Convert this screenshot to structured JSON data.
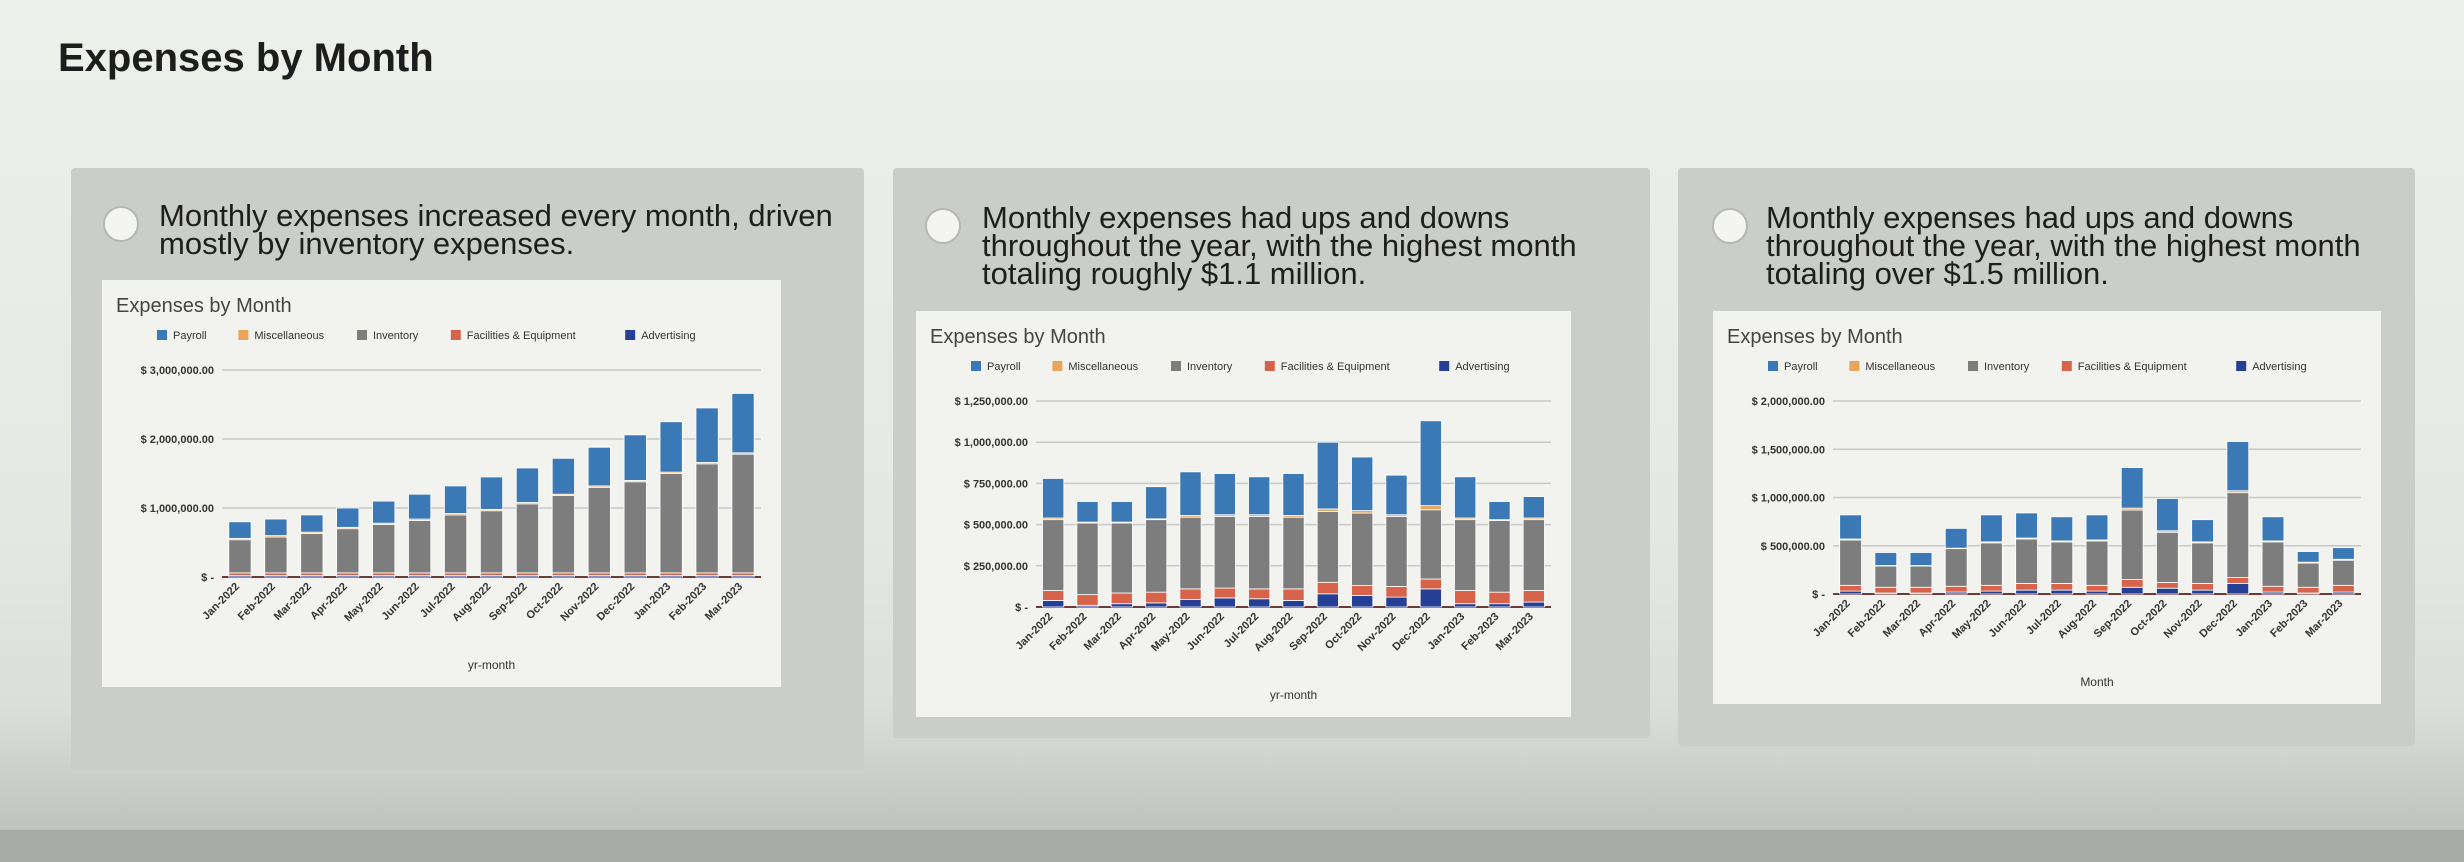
{
  "page": {
    "title": "Expenses by Month"
  },
  "options": [
    {
      "text": "Monthly expenses increased every month, driven mostly by inventory expenses.",
      "selected": false
    },
    {
      "text": "Monthly expenses had ups and downs throughout the year, with the highest month totaling roughly $1.1 million.",
      "selected": false
    },
    {
      "text": "Monthly expenses had ups and downs throughout the year, with the highest month totaling over $1.5 million.",
      "selected": false
    }
  ],
  "colors": {
    "Payroll": "#3b79b6",
    "Miscellaneous": "#e9a55c",
    "Inventory": "#7d7d7d",
    "Facilities & Equipment": "#d8634b",
    "Advertising": "#263f96"
  },
  "chart_data": [
    {
      "type": "bar",
      "stacked": true,
      "title": "Expenses by Month",
      "xlabel": "yr-month",
      "ylabel": "",
      "legend": "top",
      "grid": true,
      "ylim": [
        0,
        3000000
      ],
      "yticks": [
        0,
        1000000,
        2000000,
        3000000
      ],
      "ytick_labels": [
        "$ -",
        "$ 1,000,000.00",
        "$ 2,000,000.00",
        "$ 3,000,000.00"
      ],
      "categories": [
        "Jan-2022",
        "Feb-2022",
        "Mar-2022",
        "Apr-2022",
        "May-2022",
        "Jun-2022",
        "Jul-2022",
        "Aug-2022",
        "Sep-2022",
        "Oct-2022",
        "Nov-2022",
        "Dec-2022",
        "Jan-2023",
        "Feb-2023",
        "Mar-2023"
      ],
      "series": [
        {
          "name": "Advertising",
          "values": [
            20000,
            20000,
            20000,
            20000,
            20000,
            20000,
            20000,
            20000,
            20000,
            20000,
            20000,
            20000,
            20000,
            20000,
            20000
          ]
        },
        {
          "name": "Facilities & Equipment",
          "values": [
            40000,
            40000,
            40000,
            40000,
            40000,
            40000,
            40000,
            40000,
            40000,
            40000,
            40000,
            40000,
            40000,
            40000,
            40000
          ]
        },
        {
          "name": "Inventory",
          "values": [
            480000,
            520000,
            570000,
            640000,
            700000,
            760000,
            840000,
            900000,
            1000000,
            1120000,
            1240000,
            1320000,
            1440000,
            1580000,
            1720000
          ]
        },
        {
          "name": "Miscellaneous",
          "values": [
            20000,
            20000,
            20000,
            20000,
            20000,
            20000,
            20000,
            20000,
            20000,
            20000,
            20000,
            20000,
            20000,
            20000,
            20000
          ]
        },
        {
          "name": "Payroll",
          "values": [
            240000,
            240000,
            250000,
            280000,
            320000,
            360000,
            400000,
            470000,
            500000,
            520000,
            560000,
            660000,
            730000,
            790000,
            860000
          ]
        }
      ],
      "legend_order": [
        "Payroll",
        "Miscellaneous",
        "Inventory",
        "Facilities & Equipment",
        "Advertising"
      ]
    },
    {
      "type": "bar",
      "stacked": true,
      "title": "Expenses by Month",
      "xlabel": "yr-month",
      "ylabel": "",
      "legend": "top",
      "grid": true,
      "ylim": [
        0,
        1250000
      ],
      "yticks": [
        0,
        250000,
        500000,
        750000,
        1000000,
        1250000
      ],
      "ytick_labels": [
        "$ -",
        "$ 250,000.00",
        "$ 500,000.00",
        "$ 750,000.00",
        "$ 1,000,000.00",
        "$ 1,250,000.00"
      ],
      "categories": [
        "Jan-2022",
        "Feb-2022",
        "Mar-2022",
        "Apr-2022",
        "May-2022",
        "Jun-2022",
        "Jul-2022",
        "Aug-2022",
        "Sep-2022",
        "Oct-2022",
        "Nov-2022",
        "Dec-2022",
        "Jan-2023",
        "Feb-2023",
        "Mar-2023"
      ],
      "series": [
        {
          "name": "Advertising",
          "values": [
            40000,
            10000,
            20000,
            25000,
            45000,
            55000,
            50000,
            40000,
            80000,
            70000,
            60000,
            110000,
            20000,
            20000,
            30000
          ]
        },
        {
          "name": "Facilities & Equipment",
          "values": [
            60000,
            65000,
            65000,
            65000,
            65000,
            60000,
            60000,
            70000,
            70000,
            60000,
            65000,
            60000,
            80000,
            70000,
            70000
          ]
        },
        {
          "name": "Inventory",
          "values": [
            430000,
            435000,
            425000,
            440000,
            435000,
            435000,
            440000,
            435000,
            430000,
            440000,
            425000,
            420000,
            430000,
            435000,
            430000
          ]
        },
        {
          "name": "Miscellaneous",
          "values": [
            10000,
            5000,
            5000,
            5000,
            10000,
            10000,
            10000,
            10000,
            15000,
            15000,
            10000,
            25000,
            10000,
            5000,
            10000
          ]
        },
        {
          "name": "Payroll",
          "values": [
            240000,
            125000,
            125000,
            195000,
            265000,
            250000,
            230000,
            255000,
            405000,
            325000,
            240000,
            515000,
            250000,
            110000,
            130000
          ]
        }
      ],
      "legend_order": [
        "Payroll",
        "Miscellaneous",
        "Inventory",
        "Facilities & Equipment",
        "Advertising"
      ]
    },
    {
      "type": "bar",
      "stacked": true,
      "title": "Expenses by Month",
      "xlabel": "Month",
      "ylabel": "",
      "legend": "top",
      "grid": true,
      "ylim": [
        0,
        2000000
      ],
      "yticks": [
        0,
        500000,
        1000000,
        1500000,
        2000000
      ],
      "ytick_labels": [
        "$ -",
        "$ 500,000.00",
        "$ 1,000,000.00",
        "$ 1,500,000.00",
        "$ 2,000,000.00"
      ],
      "categories": [
        "Jan-2022",
        "Feb-2022",
        "Mar-2022",
        "Apr-2022",
        "May-2022",
        "Jun-2022",
        "Jul-2022",
        "Aug-2022",
        "Sep-2022",
        "Oct-2022",
        "Nov-2022",
        "Dec-2022",
        "Jan-2023",
        "Feb-2023",
        "Mar-2023"
      ],
      "series": [
        {
          "name": "Advertising",
          "values": [
            30000,
            10000,
            10000,
            20000,
            30000,
            40000,
            40000,
            30000,
            70000,
            60000,
            40000,
            110000,
            20000,
            10000,
            20000
          ]
        },
        {
          "name": "Facilities & Equipment",
          "values": [
            60000,
            60000,
            60000,
            60000,
            60000,
            70000,
            70000,
            60000,
            80000,
            60000,
            70000,
            60000,
            60000,
            60000,
            70000
          ]
        },
        {
          "name": "Inventory",
          "values": [
            470000,
            220000,
            220000,
            390000,
            440000,
            460000,
            430000,
            460000,
            720000,
            520000,
            420000,
            880000,
            460000,
            250000,
            260000
          ]
        },
        {
          "name": "Miscellaneous",
          "values": [
            10000,
            5000,
            5000,
            5000,
            10000,
            10000,
            10000,
            10000,
            20000,
            15000,
            10000,
            20000,
            10000,
            10000,
            10000
          ]
        },
        {
          "name": "Payroll",
          "values": [
            250000,
            135000,
            135000,
            205000,
            280000,
            260000,
            250000,
            260000,
            420000,
            335000,
            230000,
            510000,
            250000,
            110000,
            120000
          ]
        }
      ],
      "legend_order": [
        "Payroll",
        "Miscellaneous",
        "Inventory",
        "Facilities & Equipment",
        "Advertising"
      ]
    }
  ]
}
